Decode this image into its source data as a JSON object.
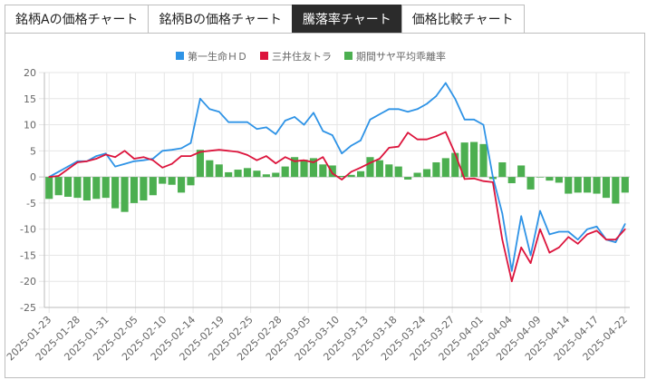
{
  "tabs": [
    {
      "label": "銘柄Aの価格チャート",
      "active": false
    },
    {
      "label": "銘柄Bの価格チャート",
      "active": false
    },
    {
      "label": "騰落率チャート",
      "active": true
    },
    {
      "label": "価格比較チャート",
      "active": false
    }
  ],
  "chart_data": {
    "type": "line",
    "ylim": [
      -25,
      20
    ],
    "yticks": [
      -25,
      -20,
      -15,
      -10,
      -5,
      0,
      5,
      10,
      15,
      20
    ],
    "xtick_labels": [
      "2025-01-23",
      "2025-01-28",
      "2025-01-31",
      "2025-02-05",
      "2025-02-10",
      "2025-02-14",
      "2025-02-19",
      "2025-02-25",
      "2025-02-28",
      "2025-03-05",
      "2025-03-10",
      "2025-03-13",
      "2025-03-18",
      "2025-03-24",
      "2025-03-27",
      "2025-04-01",
      "2025-04-04",
      "2025-04-09",
      "2025-04-14",
      "2025-04-17",
      "2025-04-22"
    ],
    "series": [
      {
        "name": "第一生命ＨＤ",
        "type": "line",
        "color": "#2e93e6",
        "values": [
          0,
          1,
          2,
          3,
          3,
          4,
          4.5,
          2,
          2.5,
          3,
          3.2,
          3.5,
          5,
          5.2,
          5.5,
          6.5,
          15,
          13,
          12.5,
          10.5,
          10.5,
          10.5,
          9.2,
          9.5,
          8.2,
          10.8,
          11.5,
          10,
          12.3,
          8.8,
          8,
          4.5,
          6,
          7,
          11,
          12,
          13,
          13,
          12.5,
          13,
          14,
          15.5,
          18,
          15,
          11,
          11,
          10,
          0,
          -7,
          -18,
          -7.5,
          -15,
          -6.5,
          -11,
          -10.5,
          -10.5,
          -12,
          -10,
          -9.5,
          -12,
          -12.5,
          -9
        ]
      },
      {
        "name": "三井住友トラ",
        "type": "line",
        "color": "#dc143c",
        "values": [
          0,
          0.2,
          1.5,
          2.8,
          3,
          3.5,
          4.3,
          3.8,
          5,
          3.5,
          3.8,
          3.2,
          1.8,
          2.5,
          4,
          4,
          4.8,
          5,
          5.2,
          5,
          4.8,
          4.2,
          3.2,
          4,
          2.6,
          3.8,
          3,
          3.2,
          2.8,
          3.8,
          0.7,
          -0.5,
          1,
          1.8,
          2.7,
          3.5,
          5.6,
          5.8,
          8.5,
          7.2,
          7.2,
          7.8,
          8.6,
          4.5,
          -0.4,
          -0.3,
          -0.8,
          -1,
          -12,
          -20,
          -13.5,
          -16.5,
          -10,
          -14.5,
          -13.5,
          -11.5,
          -12.8,
          -11,
          -10.3,
          -12,
          -12,
          -10
        ]
      },
      {
        "name": "期間サヤ平均乖離率",
        "type": "bar",
        "color": "#4caf50",
        "values": [
          -4.2,
          -3.5,
          -3.8,
          -4,
          -4.5,
          -4.2,
          -4,
          -6,
          -6.7,
          -5,
          -4.5,
          -3.5,
          -1.3,
          -1.5,
          -3,
          -1.6,
          5.2,
          3.2,
          2.4,
          0.9,
          1.4,
          1.7,
          1.2,
          0.5,
          0.8,
          2,
          3.8,
          3.3,
          3.6,
          2.4,
          2.2,
          0.2,
          0.4,
          1.1,
          3.8,
          3.2,
          2.4,
          2,
          -0.5,
          0.8,
          1.5,
          2.8,
          3.6,
          4.6,
          6.6,
          6.7,
          6.3,
          -0.4,
          2.8,
          -1.2,
          2.2,
          -2.4,
          0,
          -0.7,
          -1.1,
          -3.2,
          -3,
          -3,
          -3.2,
          -4,
          -5.1,
          -3
        ]
      }
    ]
  }
}
